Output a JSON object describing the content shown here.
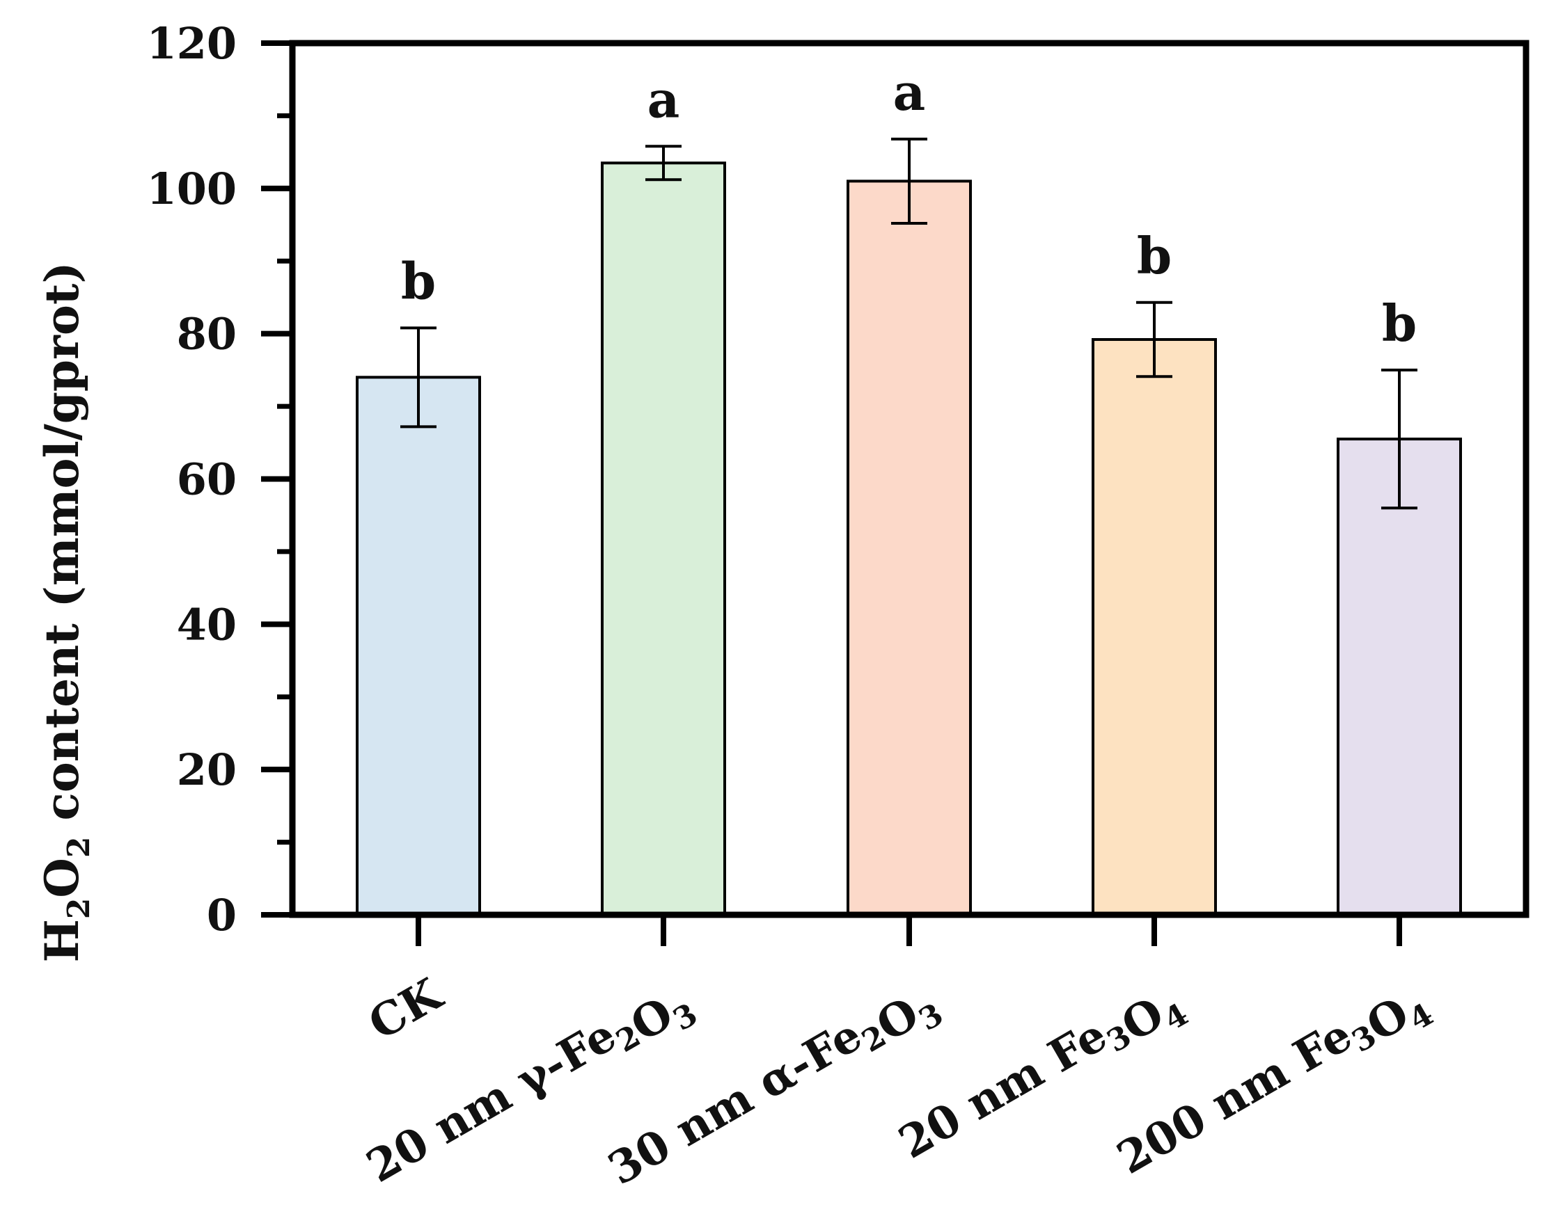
{
  "chart_data": {
    "type": "bar",
    "title": "",
    "xlabel": "",
    "ylabel": {
      "main": "H",
      "sub1": "2",
      "mid": "O",
      "sub2": "2",
      "rest": " content (mmol/gprot)"
    },
    "ylim": [
      0,
      120
    ],
    "yticks": [
      0,
      20,
      40,
      60,
      80,
      100,
      120
    ],
    "yticks_label": [
      "0",
      "20",
      "40",
      "60",
      "80",
      "100",
      "120"
    ],
    "categories": [
      {
        "prefix": "CK",
        "formula": []
      },
      {
        "prefix": "20 nm γ-",
        "formula": [
          [
            "Fe",
            "2"
          ],
          [
            "O",
            "3"
          ]
        ]
      },
      {
        "prefix": "30 nm α-",
        "formula": [
          [
            "Fe",
            "2"
          ],
          [
            "O",
            "3"
          ]
        ]
      },
      {
        "prefix": "20 nm ",
        "formula": [
          [
            "Fe",
            "3"
          ],
          [
            "O",
            "4"
          ]
        ]
      },
      {
        "prefix": "200 nm ",
        "formula": [
          [
            "Fe",
            "3"
          ],
          [
            "O",
            "4"
          ]
        ]
      }
    ],
    "values": [
      74,
      103.5,
      101,
      79.2,
      65.5
    ],
    "errors": [
      6.8,
      2.3,
      5.8,
      5.1,
      9.5
    ],
    "significance": [
      "b",
      "a",
      "a",
      "b",
      "b"
    ],
    "colors": [
      "#d6e6f2",
      "#d9efd9",
      "#fcd9c9",
      "#fde2c1",
      "#e5dfee"
    ],
    "grid": false,
    "legend": "none"
  }
}
